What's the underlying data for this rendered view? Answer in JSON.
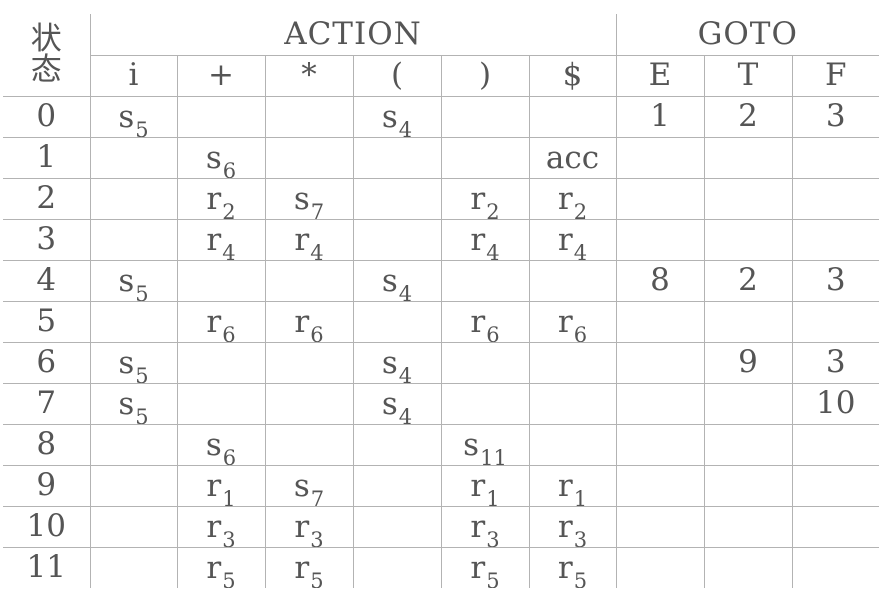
{
  "header": {
    "state_label_top": "状",
    "state_label_bottom": "态",
    "action_label": "ACTION",
    "goto_label": "GOTO"
  },
  "columns": {
    "action": [
      "i",
      "+",
      "*",
      "(",
      ")",
      "$"
    ],
    "goto": [
      "E",
      "T",
      "F"
    ]
  },
  "rows": [
    {
      "state": "0",
      "action": [
        {
          "s": "s",
          "n": "5"
        },
        null,
        null,
        {
          "s": "s",
          "n": "4"
        },
        null,
        null
      ],
      "goto": [
        "1",
        "2",
        "3"
      ]
    },
    {
      "state": "1",
      "action": [
        null,
        {
          "s": "s",
          "n": "6"
        },
        null,
        null,
        null,
        {
          "s": "acc",
          "n": ""
        }
      ],
      "goto": [
        "",
        "",
        ""
      ]
    },
    {
      "state": "2",
      "action": [
        null,
        {
          "s": "r",
          "n": "2"
        },
        {
          "s": "s",
          "n": "7"
        },
        null,
        {
          "s": "r",
          "n": "2"
        },
        {
          "s": "r",
          "n": "2"
        }
      ],
      "goto": [
        "",
        "",
        ""
      ]
    },
    {
      "state": "3",
      "action": [
        null,
        {
          "s": "r",
          "n": "4"
        },
        {
          "s": "r",
          "n": "4"
        },
        null,
        {
          "s": "r",
          "n": "4"
        },
        {
          "s": "r",
          "n": "4"
        }
      ],
      "goto": [
        "",
        "",
        ""
      ]
    },
    {
      "state": "4",
      "action": [
        {
          "s": "s",
          "n": "5"
        },
        null,
        null,
        {
          "s": "s",
          "n": "4"
        },
        null,
        null
      ],
      "goto": [
        "8",
        "2",
        "3"
      ]
    },
    {
      "state": "5",
      "action": [
        null,
        {
          "s": "r",
          "n": "6"
        },
        {
          "s": "r",
          "n": "6"
        },
        null,
        {
          "s": "r",
          "n": "6"
        },
        {
          "s": "r",
          "n": "6"
        }
      ],
      "goto": [
        "",
        "",
        ""
      ]
    },
    {
      "state": "6",
      "action": [
        {
          "s": "s",
          "n": "5"
        },
        null,
        null,
        {
          "s": "s",
          "n": "4"
        },
        null,
        null
      ],
      "goto": [
        "",
        "9",
        "3"
      ]
    },
    {
      "state": "7",
      "action": [
        {
          "s": "s",
          "n": "5"
        },
        null,
        null,
        {
          "s": "s",
          "n": "4"
        },
        null,
        null
      ],
      "goto": [
        "",
        "",
        "10"
      ]
    },
    {
      "state": "8",
      "action": [
        null,
        {
          "s": "s",
          "n": "6"
        },
        null,
        null,
        {
          "s": "s",
          "n": "11"
        },
        null
      ],
      "goto": [
        "",
        "",
        ""
      ]
    },
    {
      "state": "9",
      "action": [
        null,
        {
          "s": "r",
          "n": "1"
        },
        {
          "s": "s",
          "n": "7"
        },
        null,
        {
          "s": "r",
          "n": "1"
        },
        {
          "s": "r",
          "n": "1"
        }
      ],
      "goto": [
        "",
        "",
        ""
      ]
    },
    {
      "state": "10",
      "action": [
        null,
        {
          "s": "r",
          "n": "3"
        },
        {
          "s": "r",
          "n": "3"
        },
        null,
        {
          "s": "r",
          "n": "3"
        },
        {
          "s": "r",
          "n": "3"
        }
      ],
      "goto": [
        "",
        "",
        ""
      ]
    },
    {
      "state": "11",
      "action": [
        null,
        {
          "s": "r",
          "n": "5"
        },
        {
          "s": "r",
          "n": "5"
        },
        null,
        {
          "s": "r",
          "n": "5"
        },
        {
          "s": "r",
          "n": "5"
        }
      ],
      "goto": [
        "",
        "",
        ""
      ]
    }
  ],
  "colors": {
    "text": "#555555",
    "grid": "#b3b3b3",
    "background": "#ffffff"
  }
}
